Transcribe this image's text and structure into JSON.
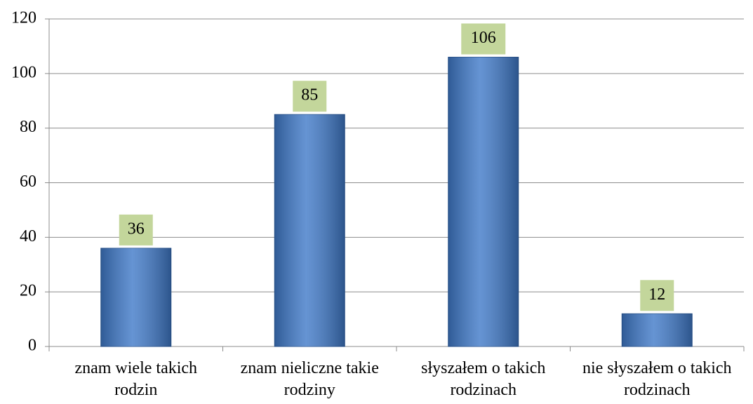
{
  "chart_data": {
    "type": "bar",
    "categories": [
      "znam wiele takich rodzin",
      "znam nieliczne takie rodziny",
      "słyszałem o takich rodzinach",
      "nie słyszałem o takich rodzinach"
    ],
    "values": [
      36,
      85,
      106,
      12
    ],
    "color": "#3f79c8",
    "label_color": "#c3d69b",
    "ylim": [
      0,
      120
    ],
    "yticks": [
      0,
      20,
      40,
      60,
      80,
      100,
      120
    ],
    "grid": true
  }
}
